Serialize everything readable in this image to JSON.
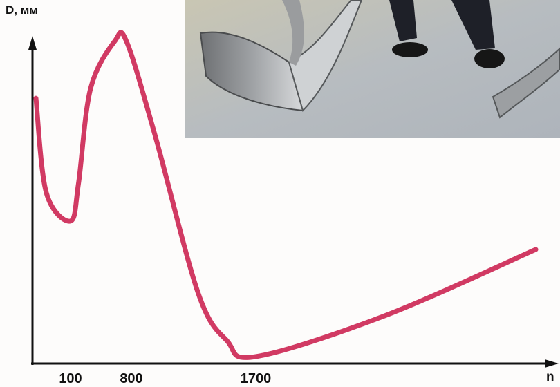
{
  "chart_data": {
    "type": "line",
    "ylabel": "D, мм",
    "xlabel": "n",
    "x_ticks": [
      "100",
      "800",
      "1700"
    ],
    "series": [
      {
        "color": "#d13a63",
        "points": [
          {
            "x": 0,
            "y": 0.82
          },
          {
            "x": 30,
            "y": 0.52
          },
          {
            "x": 100,
            "y": 0.43
          },
          {
            "x": 200,
            "y": 0.55
          },
          {
            "x": 350,
            "y": 0.85
          },
          {
            "x": 650,
            "y": 1.0
          },
          {
            "x": 800,
            "y": 1.0
          },
          {
            "x": 1000,
            "y": 0.7
          },
          {
            "x": 1300,
            "y": 0.2
          },
          {
            "x": 1500,
            "y": 0.05
          },
          {
            "x": 1700,
            "y": 0.0
          },
          {
            "x": 2300,
            "y": 0.13
          },
          {
            "x": 3000,
            "y": 0.34
          }
        ]
      }
    ]
  },
  "photo": {
    "description_icon": "bent-metal-strip-photo-icon"
  }
}
